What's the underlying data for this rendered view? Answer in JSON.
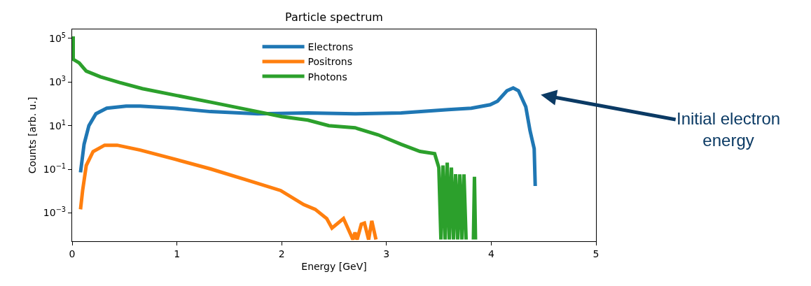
{
  "chart_data": {
    "type": "line",
    "title": "Particle spectrum",
    "xlabel": "Energy [GeV]",
    "ylabel": "Counts [arb. u.]",
    "log": "y",
    "legend": "top",
    "marker": "none",
    "line_style": "solid",
    "xlim": [
      0,
      5
    ],
    "xticks": [
      0,
      1,
      2,
      3,
      4,
      5
    ],
    "ylim": [
      5e-05,
      260000
    ],
    "yticks": [
      {
        "value": 0.001,
        "label": "10$^{−3}$"
      },
      {
        "value": 0.1,
        "label": "10$^{−1}$"
      },
      {
        "value": 10,
        "label": "10$^{1}$"
      },
      {
        "value": 1000,
        "label": "10$^{3}$"
      },
      {
        "value": 100000,
        "label": "10$^{5}$"
      }
    ],
    "series": [
      {
        "name": "Electrons",
        "color": "#1f77b4",
        "x": [
          0.08,
          0.114,
          0.16,
          0.227,
          0.33,
          0.515,
          0.65,
          0.98,
          1.32,
          1.77,
          2.25,
          2.7,
          3.14,
          3.59,
          3.81,
          3.99,
          4.06,
          4.15,
          4.21,
          4.26,
          4.33,
          4.37,
          4.41,
          4.42
        ],
        "values": [
          0.072,
          1.4,
          10,
          35,
          63,
          79,
          79,
          63,
          44,
          35,
          38,
          35,
          38,
          54,
          63,
          91,
          132,
          398,
          535,
          398,
          73,
          6,
          0.88,
          0.017
        ]
      },
      {
        "name": "Positrons",
        "color": "#ff7f0e",
        "x": [
          0.08,
          0.1,
          0.135,
          0.2,
          0.31,
          0.43,
          0.65,
          0.98,
          1.32,
          1.65,
          1.99,
          2.21,
          2.32,
          2.43,
          2.48,
          2.59,
          2.68,
          2.7,
          2.72,
          2.76,
          2.79,
          2.83,
          2.86,
          2.9
        ],
        "values": [
          0.00145,
          0.0106,
          0.15,
          0.65,
          1.27,
          1.27,
          0.76,
          0.29,
          0.104,
          0.034,
          0.0106,
          0.0024,
          0.00145,
          0.00055,
          0.0002,
          0.00055,
          6e-05,
          0.000126,
          6e-05,
          0.0003,
          0.00034,
          6e-05,
          0.00043,
          6e-05
        ]
      },
      {
        "name": "Photons",
        "color": "#2ca02c",
        "x": [
          0.01,
          0.01,
          0.067,
          0.134,
          0.27,
          0.45,
          0.67,
          1.0,
          1.34,
          1.67,
          2.0,
          2.25,
          2.45,
          2.7,
          2.92,
          3.14,
          3.32,
          3.46,
          3.5,
          3.52,
          3.54,
          3.56,
          3.58,
          3.6,
          3.62,
          3.64,
          3.66,
          3.68,
          3.7,
          3.72,
          3.74,
          3.76,
          3.8,
          3.83,
          3.84,
          3.85
        ],
        "values": [
          125000,
          11000,
          7600,
          3200,
          1740,
          960,
          500,
          240,
          115,
          55,
          26,
          18,
          10,
          8,
          3.8,
          1.4,
          0.66,
          0.52,
          0.12,
          6e-05,
          0.15,
          6e-05,
          0.2,
          6e-05,
          0.12,
          6e-05,
          0.06,
          6e-05,
          0.058,
          6e-05,
          0.058,
          6e-05,
          null,
          6e-05,
          0.045,
          6e-05
        ]
      }
    ],
    "annotations": [
      "Initial electron energy"
    ]
  }
}
